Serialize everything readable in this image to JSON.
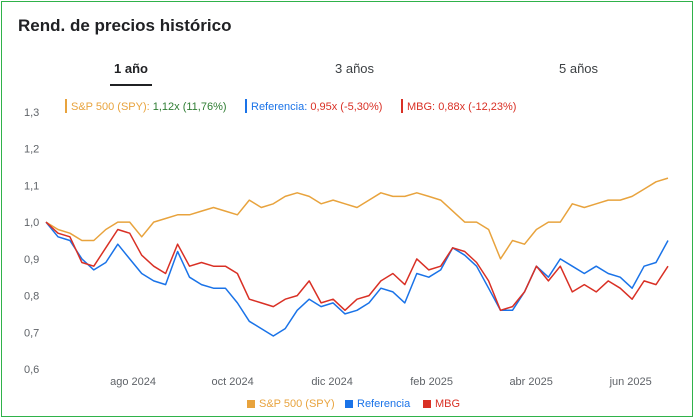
{
  "title": "Rend. de precios histórico",
  "tabs": [
    "1 año",
    "3 años",
    "5 años"
  ],
  "active_tab": 0,
  "legend_top": [
    {
      "name": "S&P 500 (SPY):",
      "value": "1,12x (11,76%)",
      "color": "#e8a33d",
      "value_color": "#2e7d32"
    },
    {
      "name": "Referencia:",
      "value": "0,95x (-5,30%)",
      "color": "#1a73e8",
      "value_color": "#d93025"
    },
    {
      "name": "MBG:",
      "value": "0,88x (-12,23%)",
      "color": "#d93025",
      "value_color": "#d93025"
    }
  ],
  "legend_bottom": [
    {
      "label": "S&P 500 (SPY)",
      "color": "#e8a33d"
    },
    {
      "label": "Referencia",
      "color": "#1a73e8"
    },
    {
      "label": "MBG",
      "color": "#d93025"
    }
  ],
  "chart_data": {
    "type": "line",
    "y_ticks": [
      "1,3",
      "1,2",
      "1,1",
      "1,0",
      "0,9",
      "0,8",
      "0,7",
      "0,6"
    ],
    "y_tick_values": [
      1.3,
      1.2,
      1.1,
      1.0,
      0.9,
      0.8,
      0.7,
      0.6
    ],
    "ylim": [
      0.6,
      1.3
    ],
    "x_ticks": [
      "ago 2024",
      "oct 2024",
      "dic 2024",
      "feb 2025",
      "abr 2025",
      "jun 2025"
    ],
    "x_tick_positions": [
      7,
      15,
      23,
      31,
      39,
      47
    ],
    "xlim": [
      0,
      50
    ],
    "grid": false,
    "series": [
      {
        "name": "S&P 500 (SPY)",
        "color": "#e8a33d",
        "values": [
          1.0,
          0.98,
          0.97,
          0.95,
          0.95,
          0.98,
          1.0,
          1.0,
          0.96,
          1.0,
          1.01,
          1.02,
          1.02,
          1.03,
          1.04,
          1.03,
          1.02,
          1.06,
          1.04,
          1.05,
          1.07,
          1.08,
          1.07,
          1.05,
          1.06,
          1.05,
          1.04,
          1.06,
          1.08,
          1.07,
          1.07,
          1.08,
          1.07,
          1.06,
          1.03,
          1.0,
          1.0,
          0.98,
          0.9,
          0.95,
          0.94,
          0.98,
          1.0,
          1.0,
          1.05,
          1.04,
          1.05,
          1.06,
          1.06,
          1.07,
          1.09,
          1.11,
          1.12
        ]
      },
      {
        "name": "Referencia",
        "color": "#1a73e8",
        "values": [
          1.0,
          0.96,
          0.95,
          0.9,
          0.87,
          0.89,
          0.94,
          0.9,
          0.86,
          0.84,
          0.83,
          0.92,
          0.85,
          0.83,
          0.82,
          0.82,
          0.78,
          0.73,
          0.71,
          0.69,
          0.71,
          0.76,
          0.79,
          0.77,
          0.78,
          0.75,
          0.76,
          0.78,
          0.82,
          0.81,
          0.78,
          0.86,
          0.85,
          0.87,
          0.93,
          0.91,
          0.88,
          0.82,
          0.76,
          0.76,
          0.81,
          0.88,
          0.85,
          0.9,
          0.88,
          0.86,
          0.88,
          0.86,
          0.85,
          0.82,
          0.88,
          0.89,
          0.95
        ]
      },
      {
        "name": "MBG",
        "color": "#d93025",
        "values": [
          1.0,
          0.97,
          0.96,
          0.89,
          0.88,
          0.93,
          0.98,
          0.97,
          0.91,
          0.88,
          0.86,
          0.94,
          0.88,
          0.89,
          0.88,
          0.88,
          0.86,
          0.79,
          0.78,
          0.77,
          0.79,
          0.8,
          0.84,
          0.78,
          0.79,
          0.76,
          0.79,
          0.8,
          0.84,
          0.86,
          0.83,
          0.9,
          0.87,
          0.88,
          0.93,
          0.92,
          0.89,
          0.84,
          0.76,
          0.77,
          0.81,
          0.88,
          0.84,
          0.88,
          0.81,
          0.83,
          0.81,
          0.84,
          0.82,
          0.79,
          0.84,
          0.83,
          0.88
        ]
      }
    ]
  }
}
